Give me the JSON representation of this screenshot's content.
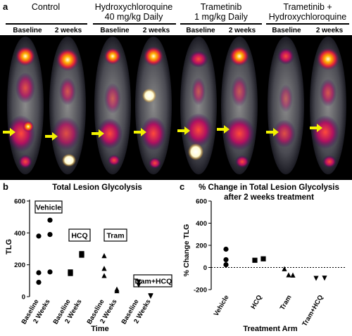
{
  "panel_a": {
    "letter": "a",
    "groups": [
      {
        "title_lines": [
          "Control"
        ],
        "left": "Baseline",
        "right": "2 weeks"
      },
      {
        "title_lines": [
          "Hydroxychloroquine",
          "40 mg/kg Daily"
        ],
        "left": "Baseline",
        "right": "2 weeks"
      },
      {
        "title_lines": [
          "Trametinib",
          "1 mg/kg Daily"
        ],
        "left": "Baseline",
        "right": "2 weeks"
      },
      {
        "title_lines": [
          "Trametinib +",
          "Hydroxychloroquine"
        ],
        "left": "Baseline",
        "right": "2 weeks"
      }
    ]
  },
  "panel_b": {
    "letter": "b"
  },
  "panel_c": {
    "letter": "c"
  },
  "chart_data": [
    {
      "type": "scatter",
      "title": "Total Lesion Glycolysis",
      "xlabel": "Time",
      "ylabel": "TLG",
      "ylim": [
        0,
        600
      ],
      "yticks": [
        "0",
        "200",
        "400",
        "600"
      ],
      "categories": [
        "Baseline",
        "2 Weeks",
        "Baseline",
        "2 Weeks",
        "Baseline",
        "2 Weeks",
        "Baseline",
        "2 Weeks"
      ],
      "group_labels": [
        "Vehicle",
        "HCQ",
        "Tram",
        "Tram+HCQ"
      ],
      "series": [
        {
          "marker": "circle",
          "x_index": [
            0,
            0,
            0,
            1,
            1,
            1
          ],
          "y": [
            380,
            150,
            90,
            480,
            390,
            155
          ]
        },
        {
          "marker": "square",
          "x_index": [
            2,
            2,
            3,
            3
          ],
          "y": [
            145,
            155,
            260,
            270
          ]
        },
        {
          "marker": "triangle",
          "x_index": [
            4,
            4,
            4,
            5,
            5
          ],
          "y": [
            255,
            175,
            130,
            45,
            35
          ]
        },
        {
          "marker": "triangle-down",
          "x_index": [
            6,
            6,
            7,
            7
          ],
          "y": [
            75,
            95,
            5,
            8
          ]
        }
      ]
    },
    {
      "type": "scatter",
      "title_lines": [
        "% Change in Total Lesion Glycolysis",
        "after 2 weeks treatment"
      ],
      "xlabel": "Treatment Arm",
      "ylabel": "% Change TLG",
      "ylim": [
        -200,
        600
      ],
      "yticks": [
        "-200",
        "-100",
        "0",
        "100",
        "200"
      ],
      "ytick_values": [
        -200,
        -100,
        0,
        100,
        200
      ],
      "ydisplay_range": [
        -200,
        200
      ],
      "reference_line_y": 0,
      "categories": [
        "Vehicle",
        "HCQ",
        "Tram",
        "Tram+HCQ"
      ],
      "series": [
        {
          "marker": "circle",
          "x_index": [
            0,
            0,
            0
          ],
          "y": [
            165,
            70,
            25
          ]
        },
        {
          "marker": "square",
          "x_index": [
            1,
            1
          ],
          "y": [
            65,
            78
          ]
        },
        {
          "marker": "triangle",
          "x_index": [
            2,
            2,
            2
          ],
          "y": [
            -15,
            -70,
            -72
          ]
        },
        {
          "marker": "triangle-down",
          "x_index": [
            3,
            3
          ],
          "y": [
            -95,
            -93
          ]
        }
      ]
    }
  ]
}
